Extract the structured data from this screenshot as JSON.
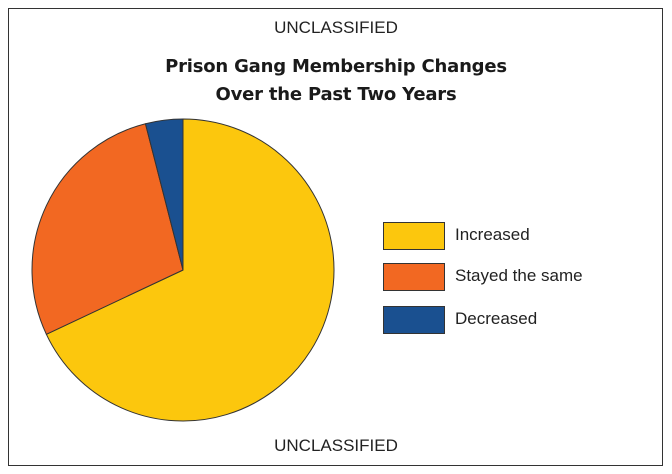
{
  "classification_top": "UNCLASSIFIED",
  "classification_bottom": "UNCLASSIFIED",
  "chart_data": {
    "type": "pie",
    "title": "Prison Gang Membership Changes Over the Past Two Years",
    "title_lines": [
      "Prison Gang Membership Changes",
      "Over the Past Two Years"
    ],
    "categories": [
      "Increased",
      "Stayed the same",
      "Decreased"
    ],
    "values": [
      68,
      28,
      4
    ],
    "colors": [
      "#FCC70D",
      "#F26822",
      "#1A5090"
    ],
    "legend_position": "right",
    "start_angle": "top, clockwise"
  }
}
